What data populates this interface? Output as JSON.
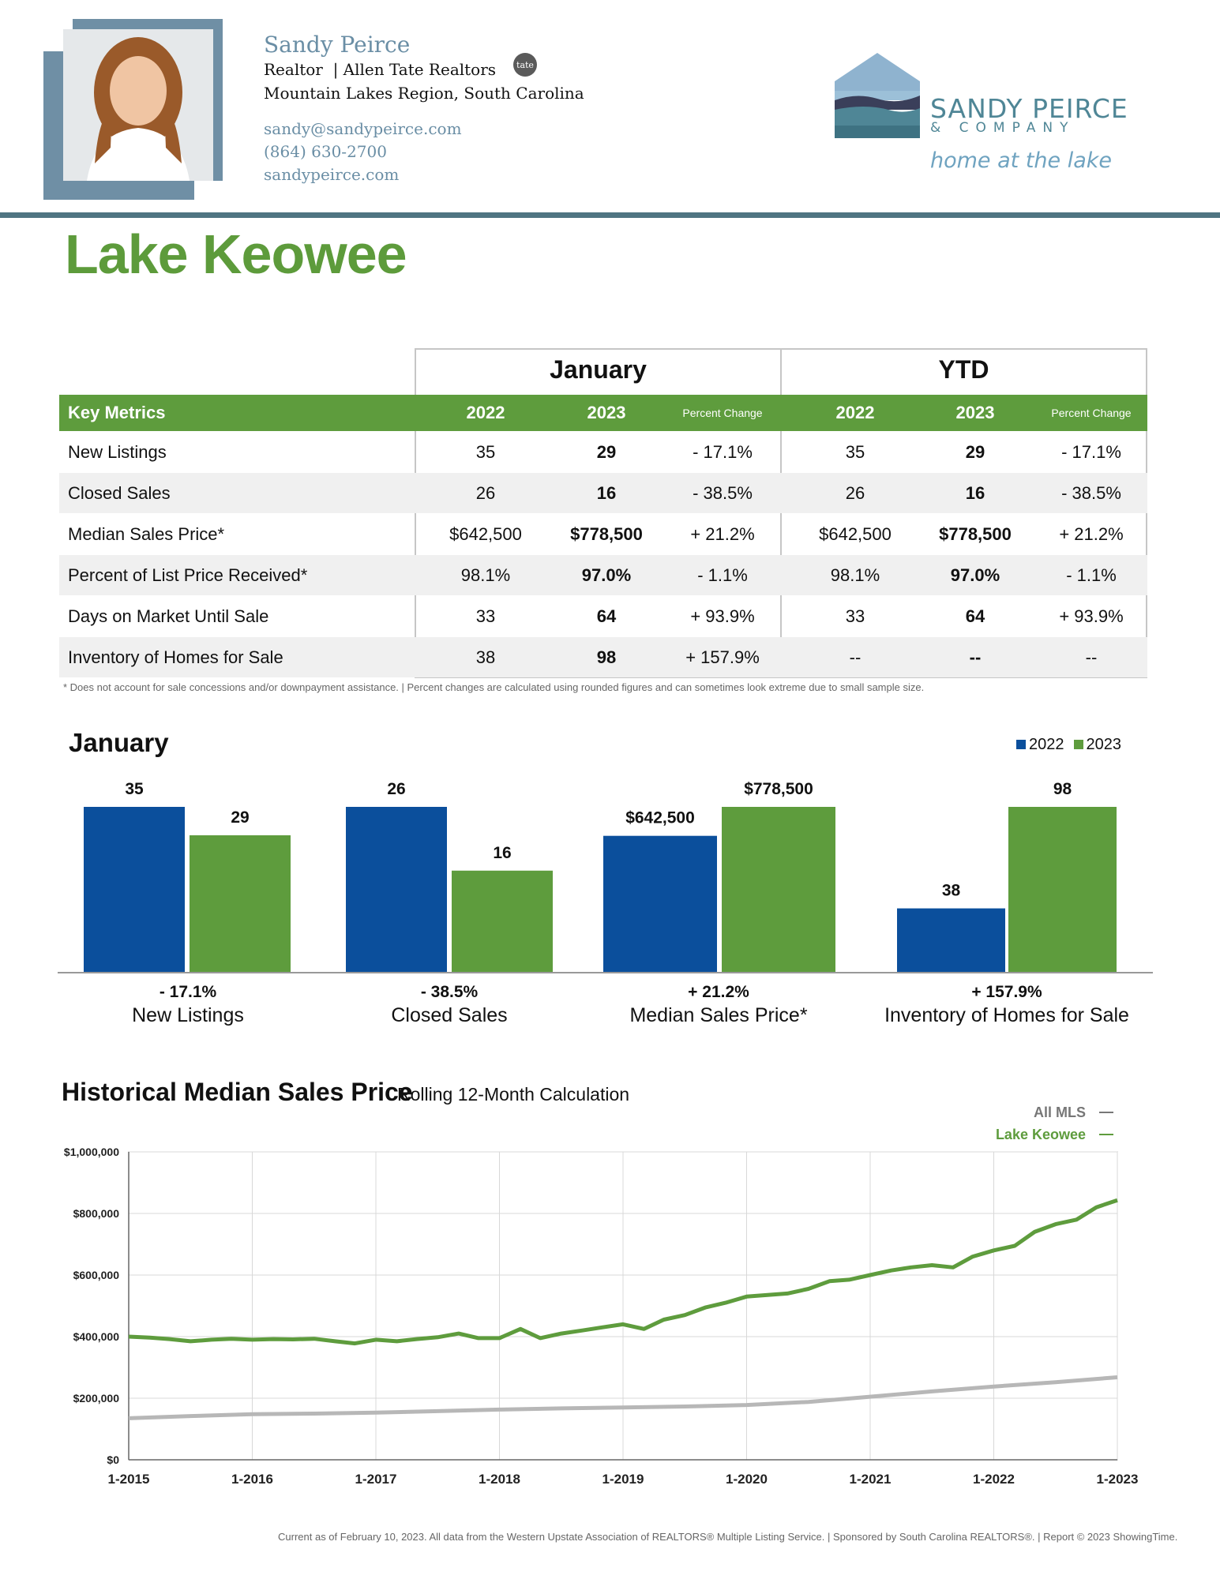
{
  "agent": {
    "name": "Sandy Peirce",
    "title": "Realtor",
    "brokerage": "Allen Tate Realtors",
    "region": "Mountain Lakes Region, South Carolina",
    "email": "sandy@sandypeirce.com",
    "phone": "(864) 630-2700",
    "website": "sandypeirce.com",
    "badge_text": "tate"
  },
  "brand": {
    "name": "SANDY PEIRCE",
    "sub": "& COMPANY",
    "tagline": "home at the lake"
  },
  "page_title": "Lake Keowee",
  "table": {
    "group_monthly": "January",
    "group_ytd": "YTD",
    "key_metrics_label": "Key Metrics",
    "year1": "2022",
    "year2": "2023",
    "pct_change_label": "Percent Change",
    "rows": [
      {
        "metric": "New Listings",
        "m1": "35",
        "m2": "29",
        "mp": "- 17.1%",
        "y1": "35",
        "y2": "29",
        "yp": "- 17.1%"
      },
      {
        "metric": "Closed Sales",
        "m1": "26",
        "m2": "16",
        "mp": "- 38.5%",
        "y1": "26",
        "y2": "16",
        "yp": "- 38.5%"
      },
      {
        "metric": "Median Sales Price*",
        "m1": "$642,500",
        "m2": "$778,500",
        "mp": "+ 21.2%",
        "y1": "$642,500",
        "y2": "$778,500",
        "yp": "+ 21.2%"
      },
      {
        "metric": "Percent of List Price Received*",
        "m1": "98.1%",
        "m2": "97.0%",
        "mp": "- 1.1%",
        "y1": "98.1%",
        "y2": "97.0%",
        "yp": "- 1.1%"
      },
      {
        "metric": "Days on Market Until Sale",
        "m1": "33",
        "m2": "64",
        "mp": "+ 93.9%",
        "y1": "33",
        "y2": "64",
        "yp": "+ 93.9%"
      },
      {
        "metric": "Inventory of Homes for Sale",
        "m1": "38",
        "m2": "98",
        "mp": "+ 157.9%",
        "y1": "--",
        "y2": "--",
        "yp": "--"
      }
    ],
    "footnote": "* Does not account for sale concessions and/or downpayment assistance.  |  Percent changes are calculated using rounded figures and can sometimes look extreme due to small sample size."
  },
  "colors": {
    "series_2022": "#0b4f9c",
    "series_2023": "#5e9c3d",
    "all_mls": "#b7b7b7",
    "lake_keowee": "#5e9c3d"
  },
  "chart_data": [
    {
      "type": "bar",
      "title": "January",
      "series": [
        {
          "name": "2022",
          "values": [
            35,
            26,
            642500,
            38
          ]
        },
        {
          "name": "2023",
          "values": [
            29,
            16,
            778500,
            98
          ]
        }
      ],
      "categories": [
        "New Listings",
        "Closed Sales",
        "Median Sales Price*",
        "Inventory of Homes for Sale"
      ],
      "value_labels": [
        [
          "35",
          "29"
        ],
        [
          "26",
          "16"
        ],
        [
          "$642,500",
          "$778,500"
        ],
        [
          "38",
          "98"
        ]
      ],
      "pct_changes": [
        "- 17.1%",
        "- 38.5%",
        "+ 21.2%",
        "+ 157.9%"
      ],
      "legend_placement": "top-right"
    },
    {
      "type": "line",
      "title": "Historical Median Sales Price",
      "subtitle": "Rolling 12-Month Calculation",
      "x_ticks": [
        "1-2015",
        "1-2016",
        "1-2017",
        "1-2018",
        "1-2019",
        "1-2020",
        "1-2021",
        "1-2022",
        "1-2023"
      ],
      "y_ticks": [
        "$0",
        "$200,000",
        "$400,000",
        "$600,000",
        "$800,000",
        "$1,000,000"
      ],
      "ylim": [
        0,
        1000000
      ],
      "xlim": [
        2015.0,
        2023.0
      ],
      "grid": true,
      "legend_placement": "top-right",
      "series": [
        {
          "name": "All MLS",
          "x": [
            2015.0,
            2015.5,
            2016.0,
            2016.5,
            2017.0,
            2017.5,
            2018.0,
            2018.5,
            2019.0,
            2019.5,
            2020.0,
            2020.5,
            2021.0,
            2021.5,
            2022.0,
            2022.5,
            2023.0
          ],
          "values": [
            135000,
            142000,
            148000,
            150000,
            153000,
            158000,
            163000,
            167000,
            170000,
            173000,
            178000,
            188000,
            205000,
            222000,
            238000,
            252000,
            268000
          ]
        },
        {
          "name": "Lake Keowee",
          "x": [
            2015.0,
            2015.17,
            2015.33,
            2015.5,
            2015.67,
            2015.83,
            2016.0,
            2016.17,
            2016.33,
            2016.5,
            2016.67,
            2016.83,
            2017.0,
            2017.17,
            2017.33,
            2017.5,
            2017.67,
            2017.83,
            2018.0,
            2018.17,
            2018.33,
            2018.5,
            2018.67,
            2018.83,
            2019.0,
            2019.17,
            2019.33,
            2019.5,
            2019.67,
            2019.83,
            2020.0,
            2020.17,
            2020.33,
            2020.5,
            2020.67,
            2020.83,
            2021.0,
            2021.17,
            2021.33,
            2021.5,
            2021.67,
            2021.83,
            2022.0,
            2022.17,
            2022.33,
            2022.5,
            2022.67,
            2022.83,
            2023.0
          ],
          "values": [
            400000,
            397000,
            392000,
            385000,
            390000,
            393000,
            390000,
            392000,
            391000,
            393000,
            385000,
            378000,
            390000,
            385000,
            392000,
            398000,
            410000,
            395000,
            395000,
            425000,
            395000,
            410000,
            420000,
            430000,
            440000,
            425000,
            455000,
            470000,
            495000,
            510000,
            530000,
            535000,
            540000,
            555000,
            580000,
            585000,
            600000,
            615000,
            625000,
            632000,
            625000,
            660000,
            680000,
            695000,
            740000,
            765000,
            780000,
            820000,
            843000
          ]
        }
      ]
    }
  ],
  "bottom_note": "Current as of February 10, 2023. All data from the Western Upstate Association of REALTORS® Multiple Listing Service.  |  Sponsored by South Carolina REALTORS®.  |  Report © 2023 ShowingTime."
}
